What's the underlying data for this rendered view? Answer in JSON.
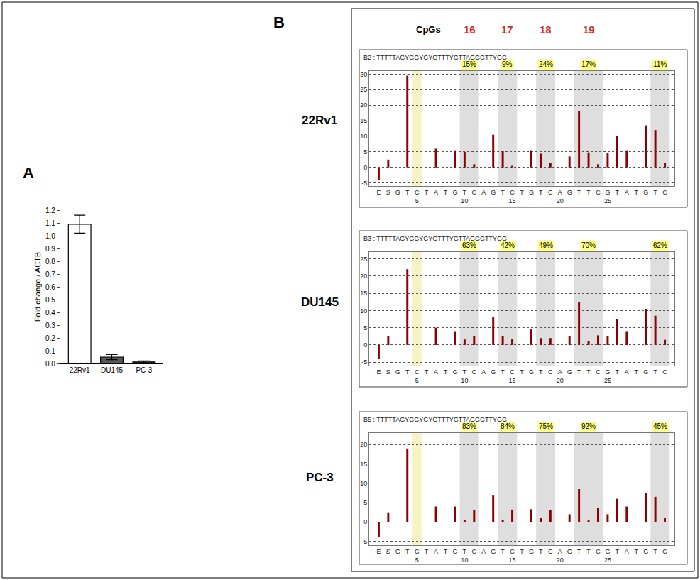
{
  "chart_data": [
    {
      "type": "bar",
      "panel": "A",
      "categories": [
        "22Rv1",
        "DU145",
        "PC-3"
      ],
      "values": [
        1.09,
        0.05,
        0.012
      ],
      "errors": [
        0.07,
        0.02,
        0.008
      ],
      "colors": [
        "#ffffff",
        "#595959",
        "#3a3a3a"
      ],
      "y_label": "Fold change / ACTB",
      "ylim": [
        0,
        1.2
      ],
      "yticks": [
        {
          "value": 0,
          "label": "0.0"
        },
        0.1,
        0.2,
        0.3,
        0.4,
        0.5,
        0.6,
        0.7,
        0.8,
        0.9,
        {
          "value": 1,
          "label": "1.0"
        },
        1.1,
        1.2
      ],
      "grid": false
    },
    {
      "type": "bar",
      "panel": "B",
      "sample": "22Rv1",
      "title": "B2 : TTTTTAGYGGYGYGTTTYGTTAGGGTTYGG",
      "cpg_header": "CpGs",
      "cpg_labels": [
        16,
        17,
        18,
        19
      ],
      "categories": [
        "E",
        "S",
        "G",
        "T",
        "C",
        "T",
        "A",
        "T",
        "G",
        "T",
        "C",
        "A",
        "G",
        "T",
        "C",
        "T",
        "G",
        "T",
        "C",
        "A",
        "G",
        "T",
        "T",
        "C",
        "G",
        "T",
        "A",
        "T",
        "G",
        "T",
        "C"
      ],
      "x": [
        1,
        2,
        3,
        4,
        5,
        6,
        7,
        8,
        9,
        10,
        11,
        12,
        13,
        14,
        15,
        16,
        17,
        18,
        19,
        20,
        21,
        22,
        23,
        24,
        25,
        26,
        27,
        28,
        29,
        30,
        31
      ],
      "values": [
        -4,
        2.5,
        0,
        29.5,
        0,
        0,
        6,
        0,
        5.5,
        5,
        1,
        0,
        10.5,
        5.3,
        0.5,
        0,
        5.5,
        4.4,
        1.4,
        0,
        3.5,
        18,
        4.8,
        1,
        4.5,
        10,
        5.5,
        0,
        13.5,
        12,
        1.5
      ],
      "color": "#8b0000",
      "bands": [
        [
          10,
          11
        ],
        [
          14,
          15
        ],
        [
          18,
          19
        ],
        [
          22,
          24
        ],
        [
          30,
          31
        ]
      ],
      "methylation": [
        15,
        9,
        24,
        17,
        11
      ],
      "methylation_labels": [
        "15%",
        "9%",
        "24%",
        "17%",
        "11%"
      ],
      "control_position": 5,
      "xlim": [
        0,
        32
      ],
      "xticks": [
        5,
        10,
        15,
        20,
        25
      ],
      "ylim": [
        -6,
        31
      ],
      "yticks": [
        -5,
        0,
        5,
        10,
        15,
        20,
        25,
        30
      ],
      "grid": true
    },
    {
      "type": "bar",
      "panel": "B",
      "sample": "DU145",
      "title": "B3 : TTTTTAGYGGYGYGTTTYGTTAGGGTTYGG",
      "categories": [
        "E",
        "S",
        "G",
        "T",
        "C",
        "T",
        "A",
        "T",
        "G",
        "T",
        "C",
        "A",
        "G",
        "T",
        "C",
        "T",
        "G",
        "T",
        "C",
        "A",
        "G",
        "T",
        "T",
        "C",
        "G",
        "T",
        "A",
        "T",
        "G",
        "T",
        "C"
      ],
      "x": [
        1,
        2,
        3,
        4,
        5,
        6,
        7,
        8,
        9,
        10,
        11,
        12,
        13,
        14,
        15,
        16,
        17,
        18,
        19,
        20,
        21,
        22,
        23,
        24,
        25,
        26,
        27,
        28,
        29,
        30,
        31
      ],
      "values": [
        -4,
        2.5,
        0,
        22,
        0,
        0,
        5,
        0,
        4,
        1.6,
        2.6,
        0,
        8,
        2.5,
        1.8,
        0,
        4.5,
        2,
        2,
        0,
        2.5,
        12.5,
        1.2,
        2.8,
        2.5,
        7.5,
        4,
        0,
        10.5,
        8.5,
        1.5
      ],
      "color": "#8b0000",
      "bands": [
        [
          10,
          11
        ],
        [
          14,
          15
        ],
        [
          18,
          19
        ],
        [
          22,
          24
        ],
        [
          30,
          31
        ]
      ],
      "methylation": [
        63,
        42,
        49,
        70,
        62
      ],
      "methylation_labels": [
        "63%",
        "42%",
        "49%",
        "70%",
        "62%"
      ],
      "control_position": 5,
      "xlim": [
        0,
        32
      ],
      "xticks": [
        5,
        10,
        15,
        20,
        25
      ],
      "ylim": [
        -6,
        27
      ],
      "yticks": [
        -5,
        0,
        5,
        10,
        15,
        20,
        25
      ],
      "grid": true
    },
    {
      "type": "bar",
      "panel": "B",
      "sample": "PC-3",
      "title": "B5 : TTTTTAGYGGYGYGTTTYGTTAGGGTTYGG",
      "categories": [
        "E",
        "S",
        "G",
        "T",
        "C",
        "T",
        "A",
        "T",
        "G",
        "T",
        "C",
        "A",
        "G",
        "T",
        "C",
        "T",
        "G",
        "T",
        "C",
        "A",
        "G",
        "T",
        "T",
        "C",
        "G",
        "T",
        "A",
        "T",
        "G",
        "T",
        "C"
      ],
      "x": [
        1,
        2,
        3,
        4,
        5,
        6,
        7,
        8,
        9,
        10,
        11,
        12,
        13,
        14,
        15,
        16,
        17,
        18,
        19,
        20,
        21,
        22,
        23,
        24,
        25,
        26,
        27,
        28,
        29,
        30,
        31
      ],
      "values": [
        -4,
        2.5,
        0,
        19,
        0,
        0,
        4,
        0,
        4,
        0.6,
        3,
        0,
        7,
        0.6,
        3.2,
        0,
        3.3,
        1,
        3,
        0,
        2,
        8.5,
        0.4,
        3.6,
        2,
        6,
        4,
        0,
        7.5,
        6.5,
        1
      ],
      "color": "#8b0000",
      "bands": [
        [
          10,
          11
        ],
        [
          14,
          15
        ],
        [
          18,
          19
        ],
        [
          22,
          24
        ],
        [
          30,
          31
        ]
      ],
      "methylation": [
        83,
        84,
        75,
        92,
        45
      ],
      "methylation_labels": [
        "83%",
        "84%",
        "75%",
        "92%",
        "45%"
      ],
      "control_position": 5,
      "xlim": [
        0,
        32
      ],
      "xticks": [
        5,
        10,
        15,
        20,
        25
      ],
      "ylim": [
        -6,
        23
      ],
      "yticks": [
        -5,
        0,
        5,
        10,
        15,
        20
      ],
      "grid": true
    }
  ]
}
